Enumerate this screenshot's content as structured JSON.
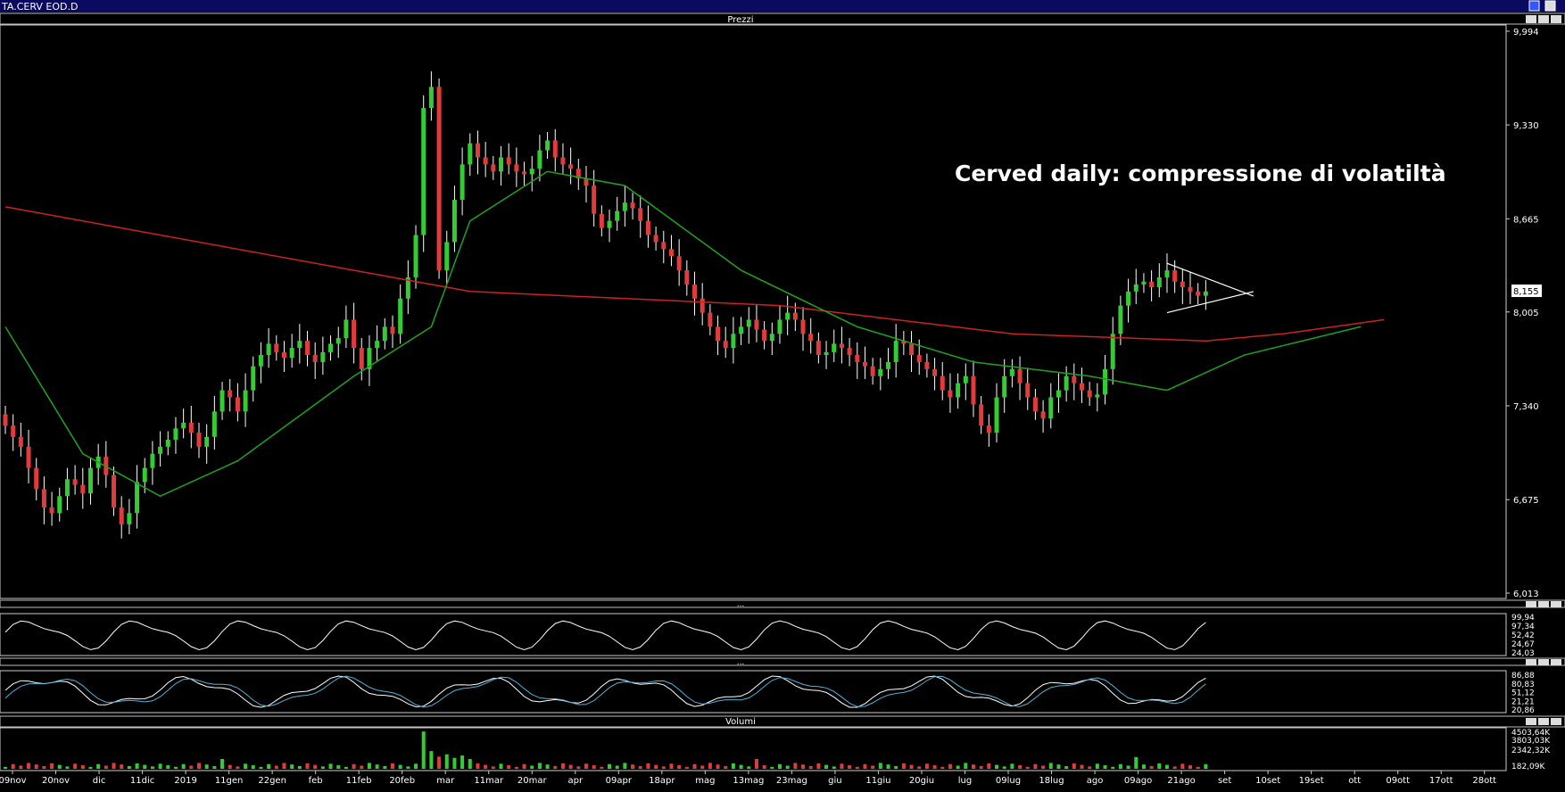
{
  "window": {
    "title": "TA.CERV EOD.D"
  },
  "colors": {
    "background": "#000000",
    "candle_up": "#33cc33",
    "candle_down": "#e03c3c",
    "ma_long": "#cc2222",
    "ma_short": "#1fa31f",
    "osc_main": "#ffffff",
    "stoch_d": "#4fb3d9",
    "volume_up": "#33cc33",
    "volume_down": "#e03c3c",
    "axis_text": "#ffffff",
    "header_text": "#ffffff"
  },
  "chart_data": [
    {
      "type": "candlestick",
      "panel_title": "Prezzi",
      "annotation": "Cerved daily: compressione di volatiltà",
      "last_price_label": "8,155",
      "y_ticks": [
        "9,994",
        "9,330",
        "8,665",
        "8,005",
        "7,340",
        "6,675",
        "6,013"
      ],
      "ylim": [
        6.013,
        9.994
      ],
      "x_ticks": [
        "09nov",
        "20nov",
        "dic",
        "11dic",
        "2019",
        "11gen",
        "22gen",
        "feb",
        "11feb",
        "20feb",
        "mar",
        "11mar",
        "20mar",
        "apr",
        "09apr",
        "18apr",
        "mag",
        "13mag",
        "23mag",
        "giu",
        "11giu",
        "20giu",
        "lug",
        "09lug",
        "18lug",
        "ago",
        "09ago",
        "21ago",
        "set",
        "10set",
        "19set",
        "ott",
        "09ott",
        "17ott",
        "28ott"
      ],
      "close_series": [
        7.2,
        7.12,
        7.05,
        6.9,
        6.75,
        6.62,
        6.58,
        6.7,
        6.82,
        6.78,
        6.72,
        6.9,
        6.98,
        6.85,
        6.62,
        6.5,
        6.58,
        6.8,
        6.9,
        7.0,
        7.05,
        7.1,
        7.18,
        7.22,
        7.15,
        7.05,
        7.12,
        7.3,
        7.45,
        7.4,
        7.3,
        7.45,
        7.62,
        7.7,
        7.78,
        7.72,
        7.68,
        7.75,
        7.8,
        7.7,
        7.65,
        7.72,
        7.78,
        7.82,
        7.95,
        7.75,
        7.6,
        7.75,
        7.8,
        7.9,
        7.85,
        8.1,
        8.25,
        8.55,
        9.45,
        9.6,
        8.3,
        8.5,
        8.8,
        9.05,
        9.2,
        9.1,
        9.05,
        9.0,
        9.1,
        9.05,
        9.0,
        8.98,
        9.02,
        9.15,
        9.22,
        9.1,
        9.05,
        9.02,
        8.95,
        8.9,
        8.7,
        8.6,
        8.65,
        8.72,
        8.78,
        8.74,
        8.65,
        8.55,
        8.5,
        8.45,
        8.4,
        8.3,
        8.2,
        8.1,
        8.0,
        7.9,
        7.8,
        7.75,
        7.85,
        7.9,
        7.95,
        7.88,
        7.8,
        7.85,
        7.95,
        8.0,
        7.95,
        7.85,
        7.8,
        7.7,
        7.72,
        7.78,
        7.75,
        7.7,
        7.65,
        7.62,
        7.55,
        7.6,
        7.65,
        7.8,
        7.78,
        7.7,
        7.65,
        7.6,
        7.55,
        7.45,
        7.4,
        7.5,
        7.55,
        7.35,
        7.2,
        7.15,
        7.4,
        7.55,
        7.6,
        7.5,
        7.4,
        7.3,
        7.25,
        7.4,
        7.45,
        7.55,
        7.5,
        7.45,
        7.4,
        7.42,
        7.6,
        7.85,
        8.05,
        8.15,
        8.2,
        8.22,
        8.18,
        8.25,
        8.3,
        8.22,
        8.18,
        8.15,
        8.12,
        8.15
      ],
      "ma_long": {
        "start": 8.75,
        "series_points": [
          [
            0,
            8.75
          ],
          [
            60,
            8.15
          ],
          [
            100,
            8.05
          ],
          [
            130,
            7.85
          ],
          [
            155,
            7.8
          ],
          [
            165,
            7.85
          ],
          [
            178,
            7.95
          ]
        ]
      },
      "ma_short": {
        "series_points": [
          [
            0,
            7.9
          ],
          [
            10,
            7.0
          ],
          [
            20,
            6.7
          ],
          [
            30,
            6.95
          ],
          [
            45,
            7.55
          ],
          [
            55,
            7.9
          ],
          [
            60,
            8.65
          ],
          [
            70,
            9.0
          ],
          [
            80,
            8.9
          ],
          [
            95,
            8.3
          ],
          [
            110,
            7.9
          ],
          [
            125,
            7.65
          ],
          [
            140,
            7.55
          ],
          [
            150,
            7.45
          ],
          [
            160,
            7.7
          ],
          [
            175,
            7.9
          ]
        ]
      },
      "triangle": {
        "upper": [
          [
            150,
            8.35
          ],
          [
            160,
            8.13
          ]
        ],
        "lower": [
          [
            150,
            8.0
          ],
          [
            160,
            8.13
          ]
        ]
      }
    },
    {
      "type": "line",
      "panel_title": "...",
      "y_tick_labels": [
        "99,94",
        "97,34",
        "52,42",
        "24,67",
        "24,03"
      ],
      "ylim": [
        0,
        100
      ]
    },
    {
      "type": "line",
      "panel_title": "...",
      "y_tick_labels": [
        "86,88",
        "80,83",
        "51,12",
        "21,21",
        "20,86"
      ],
      "ylim": [
        0,
        100
      ]
    },
    {
      "type": "bar",
      "panel_title": "Volumi",
      "y_tick_labels": [
        "4503,64K",
        "3803,03K",
        "2342,32K",
        "182,09K"
      ],
      "ylim": [
        0,
        4503
      ]
    }
  ]
}
